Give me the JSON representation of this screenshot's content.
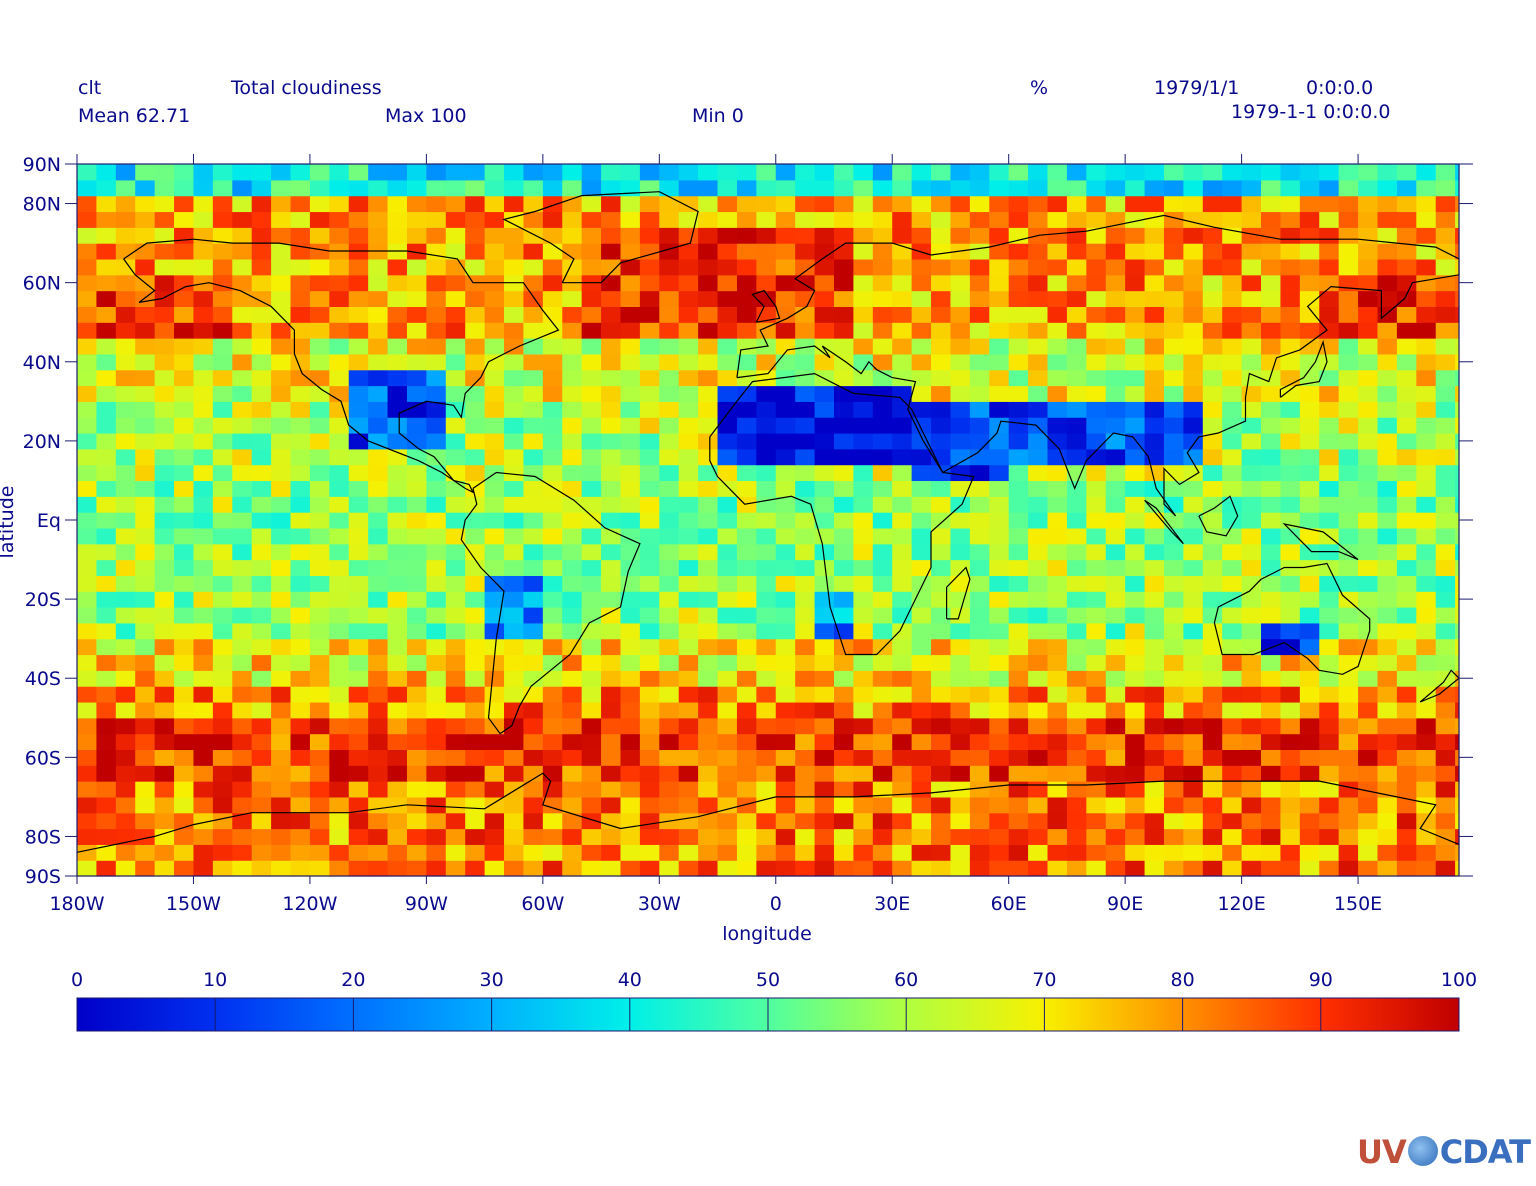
{
  "header": {
    "var_name": "clt",
    "long_name": "Total cloudiness",
    "units": "%",
    "date": "1979/1/1",
    "time": "0:0:0.0",
    "mean_label": "Mean 62.71",
    "max_label": "Max 100",
    "min_label": "Min 0",
    "timestamp": "1979-1-1 0:0:0.0"
  },
  "axes": {
    "xlabel": "longitude",
    "ylabel": "latitude",
    "xticks": [
      {
        "value": -180,
        "label": "180W"
      },
      {
        "value": -150,
        "label": "150W"
      },
      {
        "value": -120,
        "label": "120W"
      },
      {
        "value": -90,
        "label": "90W"
      },
      {
        "value": -60,
        "label": "60W"
      },
      {
        "value": -30,
        "label": "30W"
      },
      {
        "value": 0,
        "label": "0"
      },
      {
        "value": 30,
        "label": "30E"
      },
      {
        "value": 60,
        "label": "60E"
      },
      {
        "value": 90,
        "label": "90E"
      },
      {
        "value": 120,
        "label": "120E"
      },
      {
        "value": 150,
        "label": "150E"
      }
    ],
    "yticks": [
      {
        "value": 90,
        "label": "90N"
      },
      {
        "value": 80,
        "label": "80N"
      },
      {
        "value": 60,
        "label": "60N"
      },
      {
        "value": 40,
        "label": "40N"
      },
      {
        "value": 20,
        "label": "20N"
      },
      {
        "value": 0,
        "label": "Eq"
      },
      {
        "value": -20,
        "label": "20S"
      },
      {
        "value": -40,
        "label": "40S"
      },
      {
        "value": -60,
        "label": "60S"
      },
      {
        "value": -80,
        "label": "80S"
      },
      {
        "value": -90,
        "label": "90S"
      }
    ],
    "xlim": [
      -180,
      176
    ],
    "ylim": [
      -90,
      90
    ]
  },
  "colorbar": {
    "min": 0,
    "max": 100,
    "ticks": [
      "0",
      "10",
      "20",
      "30",
      "40",
      "50",
      "60",
      "70",
      "80",
      "90",
      "100"
    ],
    "colors": [
      "#0000c8",
      "#0050ff",
      "#00aaff",
      "#00eeee",
      "#40ffb0",
      "#a0ff50",
      "#f0f000",
      "#ffb000",
      "#ff5000",
      "#c00000"
    ]
  },
  "chart_data": {
    "type": "heatmap",
    "title": "Total cloudiness",
    "variable": "clt",
    "units": "%",
    "xlabel": "longitude",
    "ylabel": "latitude",
    "xlim": [
      -180,
      176
    ],
    "ylim": [
      -90,
      90
    ],
    "value_range": [
      0,
      100
    ],
    "mean": 62.71,
    "grid": "approx 4 x 5 degree cells"
  },
  "logo": {
    "left": "UV",
    "right": "CDAT"
  }
}
